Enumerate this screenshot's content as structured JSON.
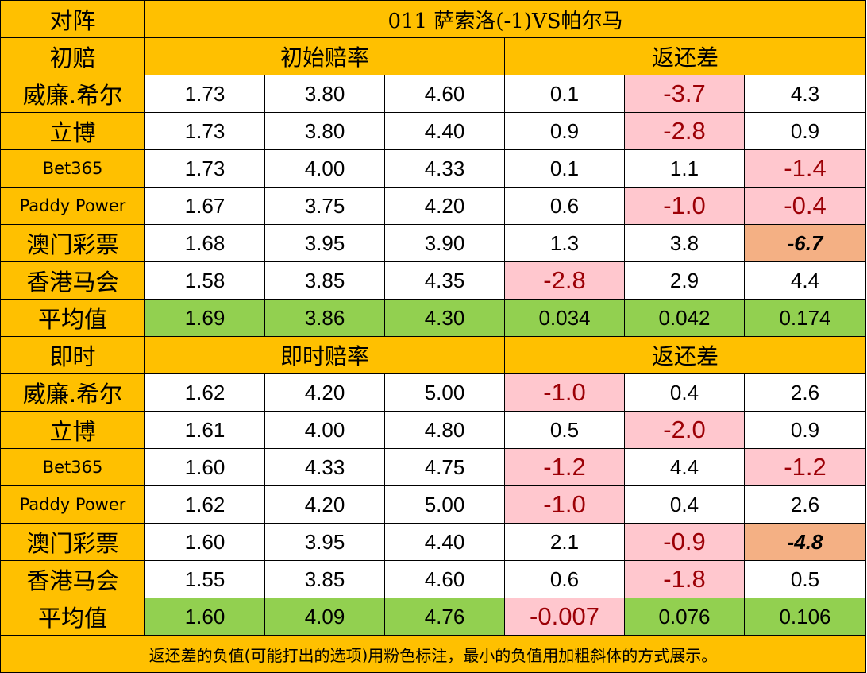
{
  "header": {
    "matchup_label": "对阵",
    "match_title": "011  萨索洛(-1)VS帕尔马"
  },
  "initial": {
    "label": "初赔",
    "odds_header": "初始赔率",
    "diff_header": "返还差",
    "rows": [
      {
        "bookmaker": "威廉.希尔",
        "o1": "1.73",
        "o2": "3.80",
        "o3": "4.60",
        "d1": "0.1",
        "d2": "-3.7",
        "d3": "4.3"
      },
      {
        "bookmaker": "立博",
        "o1": "1.73",
        "o2": "3.80",
        "o3": "4.40",
        "d1": "0.9",
        "d2": "-2.8",
        "d3": "0.9"
      },
      {
        "bookmaker": "Bet365",
        "o1": "1.73",
        "o2": "4.00",
        "o3": "4.33",
        "d1": "0.1",
        "d2": "1.1",
        "d3": "-1.4"
      },
      {
        "bookmaker": "Paddy Power",
        "o1": "1.67",
        "o2": "3.75",
        "o3": "4.20",
        "d1": "0.6",
        "d2": "-1.0",
        "d3": "-0.4"
      },
      {
        "bookmaker": "澳门彩票",
        "o1": "1.68",
        "o2": "3.95",
        "o3": "3.90",
        "d1": "1.3",
        "d2": "3.8",
        "d3": "-6.7"
      },
      {
        "bookmaker": "香港马会",
        "o1": "1.58",
        "o2": "3.85",
        "o3": "4.35",
        "d1": "-2.8",
        "d2": "2.9",
        "d3": "4.4"
      }
    ],
    "average": {
      "label": "平均值",
      "o1": "1.69",
      "o2": "3.86",
      "o3": "4.30",
      "d1": "0.034",
      "d2": "0.042",
      "d3": "0.174"
    }
  },
  "live": {
    "label": "即时",
    "odds_header": "即时赔率",
    "diff_header": "返还差",
    "rows": [
      {
        "bookmaker": "威廉.希尔",
        "o1": "1.62",
        "o2": "4.20",
        "o3": "5.00",
        "d1": "-1.0",
        "d2": "0.4",
        "d3": "2.6"
      },
      {
        "bookmaker": "立博",
        "o1": "1.61",
        "o2": "4.00",
        "o3": "4.80",
        "d1": "0.5",
        "d2": "-2.0",
        "d3": "0.9"
      },
      {
        "bookmaker": "Bet365",
        "o1": "1.60",
        "o2": "4.33",
        "o3": "4.75",
        "d1": "-1.2",
        "d2": "4.4",
        "d3": "-1.2"
      },
      {
        "bookmaker": "Paddy Power",
        "o1": "1.62",
        "o2": "4.20",
        "o3": "5.00",
        "d1": "-1.0",
        "d2": "0.4",
        "d3": "2.6"
      },
      {
        "bookmaker": "澳门彩票",
        "o1": "1.60",
        "o2": "3.95",
        "o3": "4.40",
        "d1": "2.1",
        "d2": "-0.9",
        "d3": "-4.8"
      },
      {
        "bookmaker": "香港马会",
        "o1": "1.55",
        "o2": "3.85",
        "o3": "4.60",
        "d1": "0.6",
        "d2": "-1.8",
        "d3": "0.5"
      }
    ],
    "average": {
      "label": "平均值",
      "o1": "1.60",
      "o2": "4.09",
      "o3": "4.76",
      "d1": "-0.007",
      "d2": "0.076",
      "d3": "0.106"
    }
  },
  "footnote": "返还差的负值(可能打出的选项)用粉色标注，最小的负值用加粗斜体的方式展示。",
  "colors": {
    "header_gold": "#ffc000",
    "average_green": "#92d050",
    "negative_pink": "#ffc7ce",
    "negative_text": "#9c0006",
    "min_negative_orange": "#f4b084"
  }
}
